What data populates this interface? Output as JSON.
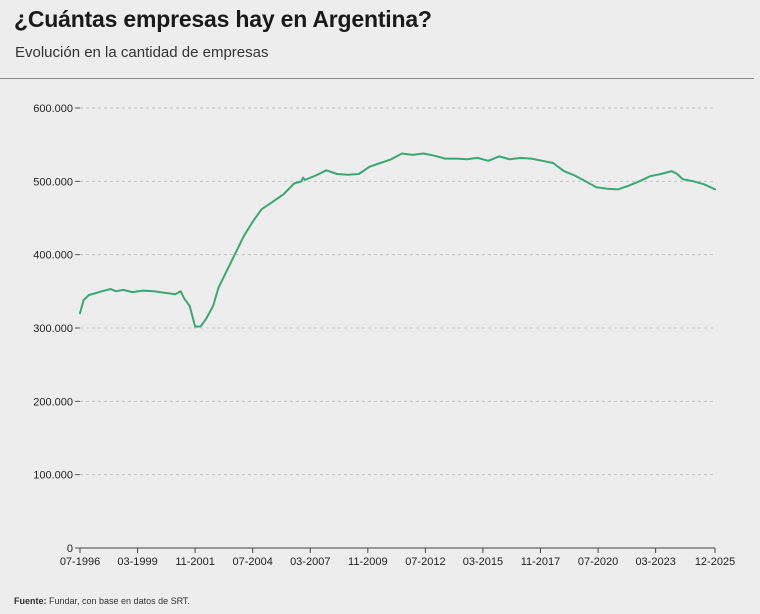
{
  "header": {
    "title": "¿Cuántas empresas hay en Argentina?",
    "subtitle": "Evolución en la cantidad de empresas"
  },
  "source": {
    "label": "Fuente:",
    "text": " Fundar, con base en datos de SRT."
  },
  "colors": {
    "line": "#3aa872",
    "grid": "#c4c4c4",
    "background": "#ededed"
  },
  "chart_data": {
    "type": "line",
    "title": "¿Cuántas empresas hay en Argentina?",
    "subtitle": "Evolución en la cantidad de empresas",
    "xlabel": "",
    "ylabel": "",
    "x_ticks": [
      "07-1996",
      "03-1999",
      "11-2001",
      "07-2004",
      "03-2007",
      "11-2009",
      "07-2012",
      "03-2015",
      "11-2017",
      "07-2020",
      "03-2023",
      "12-2025"
    ],
    "y_ticks": [
      0,
      100000,
      200000,
      300000,
      400000,
      500000,
      600000
    ],
    "y_tick_labels": [
      "0",
      "100.000",
      "200.000",
      "300.000",
      "400.000",
      "500.000",
      "600.000"
    ],
    "ylim": [
      0,
      600000
    ],
    "xlim": [
      "07-1996",
      "12-2025"
    ],
    "grid": true,
    "legend": "none",
    "series": [
      {
        "x": [
          "07-1996",
          "09-1996",
          "12-1996",
          "03-1997",
          "07-1997",
          "12-1997",
          "03-1998",
          "07-1998",
          "12-1998",
          "06-1999",
          "12-1999",
          "06-2000",
          "12-2000",
          "03-2001",
          "04-2001",
          "05-2001",
          "08-2001",
          "11-2001",
          "02-2002",
          "05-2002",
          "09-2002",
          "12-2002",
          "04-2003",
          "09-2003",
          "02-2004",
          "07-2004",
          "12-2004",
          "06-2005",
          "12-2005",
          "06-2006",
          "10-2006",
          "11-2006",
          "12-2006",
          "06-2007",
          "12-2007",
          "06-2008",
          "12-2008",
          "06-2009",
          "12-2009",
          "06-2010",
          "12-2010",
          "06-2011",
          "12-2011",
          "06-2012",
          "12-2012",
          "06-2013",
          "12-2013",
          "06-2014",
          "12-2014",
          "06-2015",
          "12-2015",
          "06-2016",
          "12-2016",
          "06-2017",
          "12-2017",
          "06-2018",
          "12-2018",
          "06-2019",
          "12-2019",
          "06-2020",
          "12-2020",
          "06-2021",
          "12-2021",
          "06-2022",
          "12-2022",
          "06-2023",
          "12-2023",
          "03-2024",
          "06-2024",
          "12-2024",
          "06-2025",
          "12-2025"
        ],
        "values": [
          320000,
          338000,
          345000,
          347000,
          350000,
          353000,
          350000,
          352000,
          349000,
          351000,
          350000,
          348000,
          346000,
          350000,
          345000,
          340000,
          330000,
          302000,
          302000,
          312000,
          330000,
          355000,
          375000,
          400000,
          425000,
          445000,
          462000,
          472000,
          482000,
          497000,
          500000,
          505000,
          502000,
          508000,
          515000,
          510000,
          509000,
          510000,
          520000,
          525000,
          530000,
          538000,
          536000,
          538000,
          535000,
          531000,
          531000,
          530000,
          532000,
          528000,
          534000,
          530000,
          532000,
          531000,
          528000,
          525000,
          514000,
          508000,
          500000,
          492000,
          490000,
          489000,
          494000,
          500000,
          507000,
          510000,
          514000,
          510000,
          503000,
          500000,
          496000,
          489000
        ]
      }
    ]
  }
}
